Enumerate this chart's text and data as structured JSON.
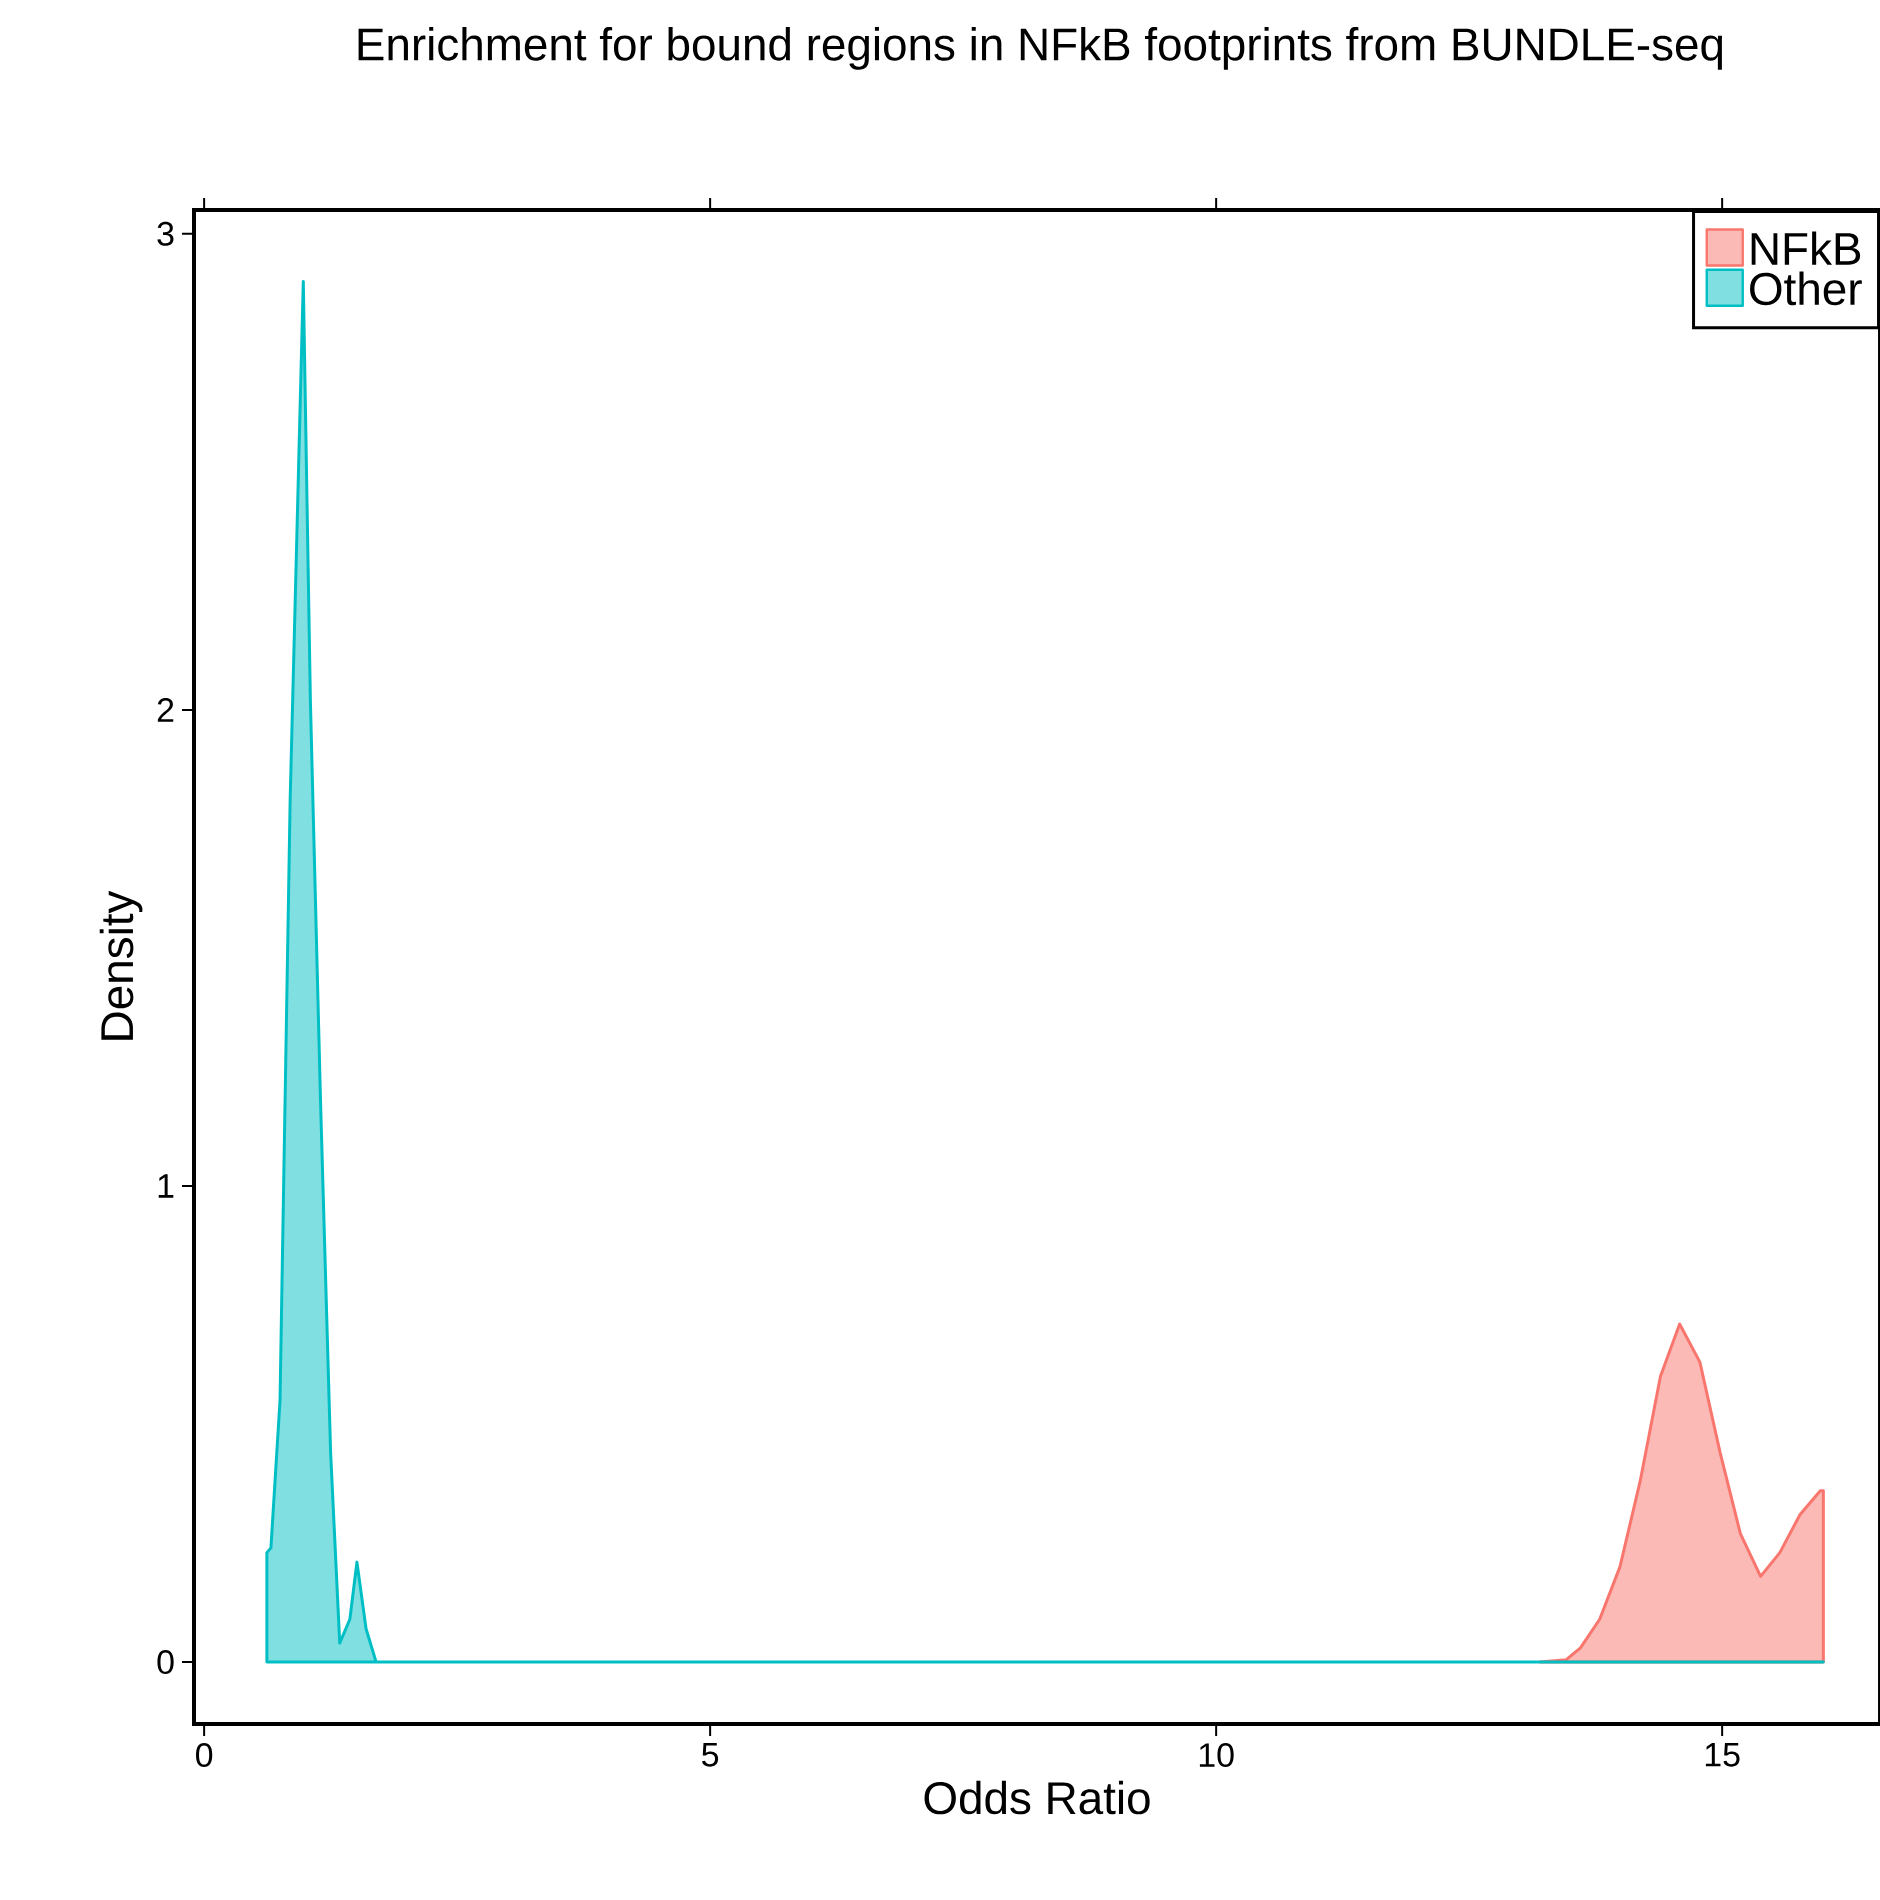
{
  "chart_data": {
    "type": "area",
    "title": "Enrichment for bound regions in NFkB footprints from BUNDLE-seq",
    "xlabel": "Odds Ratio",
    "ylabel": "Density",
    "xlim": [
      -0.1,
      16.56
    ],
    "ylim": [
      -0.13,
      3.05
    ],
    "xticks": [
      0,
      5,
      10,
      15
    ],
    "yticks": [
      0,
      1,
      2,
      3
    ],
    "grid": false,
    "legend": "top right",
    "series": [
      {
        "name": "NFkB",
        "color": "#f8766d",
        "x": [
          13.2,
          13.46,
          13.6,
          13.79,
          13.99,
          14.19,
          14.39,
          14.58,
          14.78,
          14.98,
          15.18,
          15.38,
          15.57,
          15.77,
          15.97,
          16.0
        ],
        "values": [
          0,
          0.005,
          0.03,
          0.09,
          0.2,
          0.38,
          0.6,
          0.71,
          0.63,
          0.44,
          0.27,
          0.18,
          0.23,
          0.31,
          0.36,
          0.36
        ]
      },
      {
        "name": "Other",
        "color": "#00bfc4",
        "x": [
          0.62,
          0.66,
          0.75,
          0.85,
          0.98,
          1.05,
          1.15,
          1.25,
          1.34,
          1.44,
          1.51,
          1.6,
          1.7,
          16.0
        ],
        "values": [
          0.23,
          0.24,
          0.55,
          1.81,
          2.9,
          2.02,
          1.18,
          0.44,
          0.04,
          0.09,
          0.21,
          0.07,
          0,
          0
        ]
      }
    ]
  }
}
